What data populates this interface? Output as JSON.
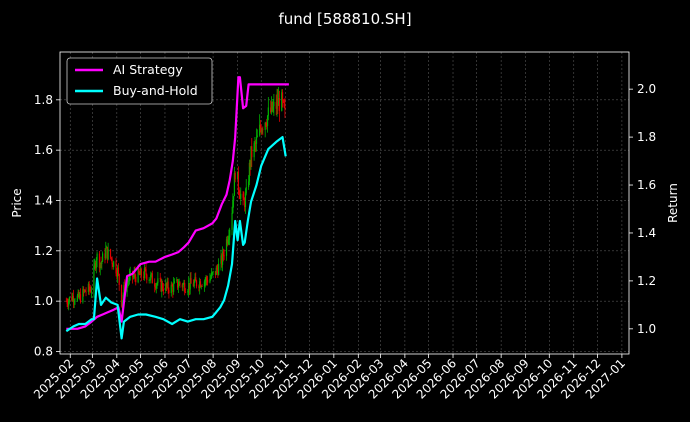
{
  "chart_data": {
    "type": "line",
    "title": "fund [588810.SH]",
    "ylabel": "Price",
    "y2label": "Return",
    "ylim": [
      0.79,
      1.99
    ],
    "y2lim": [
      0.895,
      2.155
    ],
    "y_ticks": [
      "0.8",
      "1.0",
      "1.2",
      "1.4",
      "1.6",
      "1.8"
    ],
    "y2_ticks": [
      "1.0",
      "1.2",
      "1.4",
      "1.6",
      "1.8",
      "2.0"
    ],
    "x_ticks": [
      "2025-02",
      "2025-03",
      "2025-04",
      "2025-05",
      "2025-06",
      "2025-07",
      "2025-08",
      "2025-09",
      "2025-10",
      "2025-11",
      "2025-12",
      "2026-01",
      "2026-02",
      "2026-03",
      "2026-04",
      "2026-05",
      "2026-06",
      "2026-07",
      "2026-08",
      "2026-09",
      "2026-10",
      "2026-11",
      "2026-12",
      "2027-01"
    ],
    "grid": true,
    "legend_position": "top-left",
    "series": [
      {
        "name": "AI Strategy",
        "axis": "right",
        "color": "#ff00ff",
        "points": [
          [
            "2025-01-27",
            1.0
          ],
          [
            "2025-02-10",
            1.0
          ],
          [
            "2025-02-20",
            1.01
          ],
          [
            "2025-02-28",
            1.03
          ],
          [
            "2025-03-07",
            1.05
          ],
          [
            "2025-03-14",
            1.06
          ],
          [
            "2025-03-21",
            1.07
          ],
          [
            "2025-03-28",
            1.08
          ],
          [
            "2025-04-03",
            1.09
          ],
          [
            "2025-04-07",
            1.03
          ],
          [
            "2025-04-14",
            1.22
          ],
          [
            "2025-04-21",
            1.23
          ],
          [
            "2025-05-01",
            1.27
          ],
          [
            "2025-05-12",
            1.28
          ],
          [
            "2025-05-20",
            1.28
          ],
          [
            "2025-06-01",
            1.3
          ],
          [
            "2025-06-10",
            1.31
          ],
          [
            "2025-06-18",
            1.32
          ],
          [
            "2025-06-25",
            1.34
          ],
          [
            "2025-07-01",
            1.36
          ],
          [
            "2025-07-10",
            1.41
          ],
          [
            "2025-07-20",
            1.42
          ],
          [
            "2025-07-31",
            1.44
          ],
          [
            "2025-08-05",
            1.46
          ],
          [
            "2025-08-12",
            1.52
          ],
          [
            "2025-08-18",
            1.56
          ],
          [
            "2025-08-22",
            1.62
          ],
          [
            "2025-08-26",
            1.7
          ],
          [
            "2025-08-29",
            1.8
          ],
          [
            "2025-09-02",
            2.05
          ],
          [
            "2025-09-04",
            2.05
          ],
          [
            "2025-09-08",
            1.92
          ],
          [
            "2025-09-12",
            1.93
          ],
          [
            "2025-09-15",
            2.02
          ],
          [
            "2025-09-22",
            2.02
          ],
          [
            "2025-10-10",
            2.02
          ],
          [
            "2025-10-31",
            2.02
          ],
          [
            "2025-11-05",
            2.02
          ]
        ]
      },
      {
        "name": "Buy-and-Hold",
        "axis": "right",
        "color": "#00ffff",
        "points": [
          [
            "2025-01-27",
            0.99
          ],
          [
            "2025-02-05",
            1.01
          ],
          [
            "2025-02-12",
            1.02
          ],
          [
            "2025-02-20",
            1.02
          ],
          [
            "2025-02-28",
            1.04
          ],
          [
            "2025-03-03",
            1.04
          ],
          [
            "2025-03-07",
            1.21
          ],
          [
            "2025-03-12",
            1.1
          ],
          [
            "2025-03-18",
            1.13
          ],
          [
            "2025-03-25",
            1.11
          ],
          [
            "2025-04-02",
            1.1
          ],
          [
            "2025-04-07",
            0.96
          ],
          [
            "2025-04-10",
            1.03
          ],
          [
            "2025-04-18",
            1.05
          ],
          [
            "2025-04-28",
            1.06
          ],
          [
            "2025-05-08",
            1.06
          ],
          [
            "2025-05-20",
            1.05
          ],
          [
            "2025-05-30",
            1.04
          ],
          [
            "2025-06-10",
            1.02
          ],
          [
            "2025-06-20",
            1.04
          ],
          [
            "2025-06-30",
            1.03
          ],
          [
            "2025-07-10",
            1.04
          ],
          [
            "2025-07-20",
            1.04
          ],
          [
            "2025-07-31",
            1.05
          ],
          [
            "2025-08-05",
            1.07
          ],
          [
            "2025-08-10",
            1.09
          ],
          [
            "2025-08-15",
            1.12
          ],
          [
            "2025-08-20",
            1.18
          ],
          [
            "2025-08-25",
            1.27
          ],
          [
            "2025-08-29",
            1.45
          ],
          [
            "2025-09-01",
            1.37
          ],
          [
            "2025-09-04",
            1.45
          ],
          [
            "2025-09-08",
            1.35
          ],
          [
            "2025-09-10",
            1.36
          ],
          [
            "2025-09-14",
            1.45
          ],
          [
            "2025-09-18",
            1.53
          ],
          [
            "2025-09-25",
            1.6
          ],
          [
            "2025-10-01",
            1.68
          ],
          [
            "2025-10-10",
            1.75
          ],
          [
            "2025-10-20",
            1.78
          ],
          [
            "2025-10-28",
            1.8
          ],
          [
            "2025-11-01",
            1.72
          ]
        ]
      }
    ],
    "candlestick": {
      "axis": "left",
      "up_color": "#00b000",
      "down_color": "#e00000",
      "points": [
        [
          "2025-01-27",
          1.0
        ],
        [
          "2025-02-05",
          1.02
        ],
        [
          "2025-02-12",
          1.01
        ],
        [
          "2025-02-20",
          1.04
        ],
        [
          "2025-02-28",
          1.05
        ],
        [
          "2025-03-06",
          1.18
        ],
        [
          "2025-03-12",
          1.15
        ],
        [
          "2025-03-18",
          1.2
        ],
        [
          "2025-03-25",
          1.17
        ],
        [
          "2025-04-02",
          1.12
        ],
        [
          "2025-04-07",
          1.0
        ],
        [
          "2025-04-12",
          1.07
        ],
        [
          "2025-04-20",
          1.1
        ],
        [
          "2025-04-28",
          1.1
        ],
        [
          "2025-05-08",
          1.11
        ],
        [
          "2025-05-18",
          1.08
        ],
        [
          "2025-05-28",
          1.06
        ],
        [
          "2025-06-08",
          1.05
        ],
        [
          "2025-06-18",
          1.07
        ],
        [
          "2025-06-28",
          1.06
        ],
        [
          "2025-07-08",
          1.07
        ],
        [
          "2025-07-18",
          1.08
        ],
        [
          "2025-07-28",
          1.09
        ],
        [
          "2025-08-05",
          1.12
        ],
        [
          "2025-08-12",
          1.16
        ],
        [
          "2025-08-18",
          1.24
        ],
        [
          "2025-08-24",
          1.33
        ],
        [
          "2025-08-29",
          1.52
        ],
        [
          "2025-09-03",
          1.45
        ],
        [
          "2025-09-08",
          1.38
        ],
        [
          "2025-09-12",
          1.42
        ],
        [
          "2025-09-18",
          1.58
        ],
        [
          "2025-09-24",
          1.62
        ],
        [
          "2025-10-01",
          1.7
        ],
        [
          "2025-10-10",
          1.74
        ],
        [
          "2025-10-18",
          1.77
        ],
        [
          "2025-10-26",
          1.8
        ],
        [
          "2025-11-01",
          1.72
        ]
      ]
    }
  }
}
